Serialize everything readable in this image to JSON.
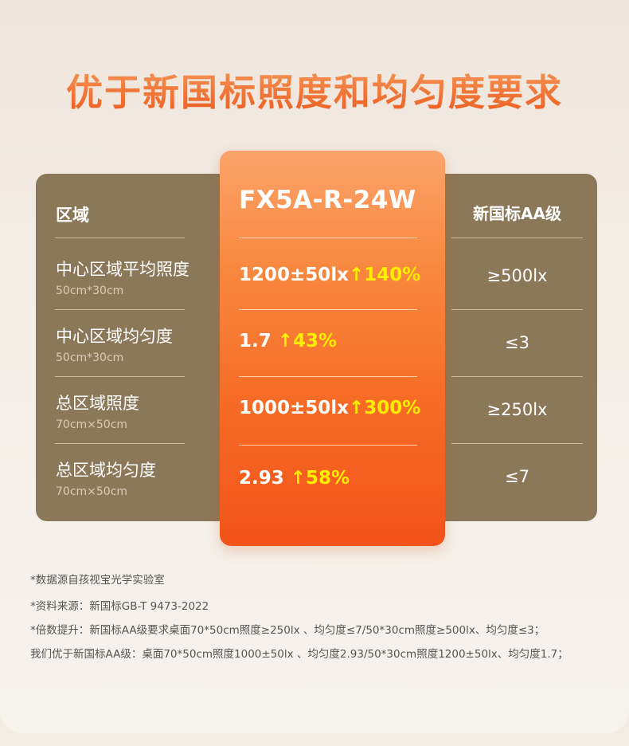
{
  "title": "优于新国标照度和均匀度要求",
  "table": {
    "left_header": "区域",
    "model_header": "FX5A-R-24W",
    "right_header": "新国标AA级",
    "rows": [
      {
        "name": "中心区域平均照度",
        "sub": "50cm*30cm",
        "value": "1200±50lx",
        "arrow": "↑",
        "pct": "140%",
        "standard": "≥500lx"
      },
      {
        "name": "中心区域均匀度",
        "sub": "50cm*30cm",
        "value": "1.7",
        "arrow": "↑",
        "pct": "43%",
        "standard": "≤3"
      },
      {
        "name": "总区域照度",
        "sub": "70cm×50cm",
        "value": "1000±50lx",
        "arrow": "↑",
        "pct": "300%",
        "standard": "≥250lx"
      },
      {
        "name": "总区域均匀度",
        "sub": "70cm×50cm",
        "value": "2.93",
        "arrow": "↑",
        "pct": "58%",
        "standard": "≤7"
      }
    ]
  },
  "notes": [
    "*数据源自孩视宝光学实验室",
    "*资料来源：新国标GB-T 9473-2022",
    "*倍数提升：新国标AA级要求桌面70*50cm照度≥250lx 、均匀度≤7/50*30cm照度≥500lx、均匀度≤3；",
    " 我们优于新国标AA级：桌面70*50cm照度1000±50lx 、均匀度2.93/50*30cm照度1200±50lx、均匀度1.7；"
  ],
  "colors": {
    "panel": "#8b7858",
    "highlight_top": "#fba36a",
    "highlight_bottom": "#f2531a",
    "title": "#f06a2a",
    "accent_yellow": "#ffee00"
  }
}
